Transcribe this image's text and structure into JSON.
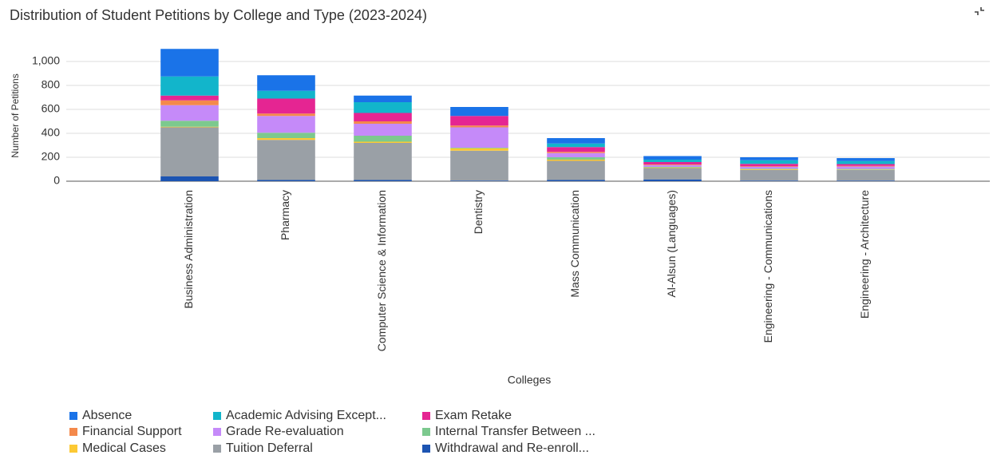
{
  "chart_data": {
    "type": "stacked_bar",
    "title": "Distribution of Student Petitions by College and Type (2023-2024)",
    "x_label": "Colleges",
    "y_label": "Number of Petitions",
    "categories": [
      "Business Administration",
      "Pharmacy",
      "Computer Science & Information",
      "Dentistry",
      "Mass Communication",
      "Al-Alsun (Languages)",
      "Engineering - Communications",
      "Engineering - Architecture"
    ],
    "series": [
      {
        "name": "Absence",
        "color": "#1a73e8",
        "values": [
          230,
          130,
          55,
          75,
          45,
          30,
          25,
          25
        ]
      },
      {
        "name": "Academic Advising Except...",
        "color": "#12b5cb",
        "values": [
          160,
          65,
          90,
          0,
          30,
          20,
          30,
          25
        ]
      },
      {
        "name": "Exam Retake",
        "color": "#e52592",
        "values": [
          40,
          125,
          70,
          80,
          40,
          20,
          20,
          15
        ]
      },
      {
        "name": "Financial Support",
        "color": "#f4894b",
        "values": [
          40,
          20,
          20,
          15,
          10,
          5,
          5,
          5
        ]
      },
      {
        "name": "Grade Re-evaluation",
        "color": "#c58af9",
        "values": [
          130,
          140,
          100,
          170,
          35,
          15,
          15,
          20
        ]
      },
      {
        "name": "Internal Transfer Between ...",
        "color": "#7cc98e",
        "values": [
          50,
          45,
          50,
          5,
          20,
          5,
          5,
          5
        ]
      },
      {
        "name": "Medical Cases",
        "color": "#fcc934",
        "values": [
          5,
          15,
          10,
          20,
          10,
          5,
          5,
          3
        ]
      },
      {
        "name": "Tuition Deferral",
        "color": "#9aa0a6",
        "values": [
          410,
          335,
          310,
          250,
          160,
          95,
          90,
          90
        ]
      },
      {
        "name": "Withdrawal and Re-enroll...",
        "color": "#1c54b2",
        "values": [
          40,
          10,
          10,
          5,
          10,
          15,
          5,
          5
        ]
      }
    ],
    "ylim": [
      0,
      1150
    ],
    "yticks": [
      0,
      200,
      400,
      600,
      800,
      {
        "value": 1000,
        "label": "1,000"
      }
    ],
    "grid": true,
    "legend": "bottom"
  }
}
